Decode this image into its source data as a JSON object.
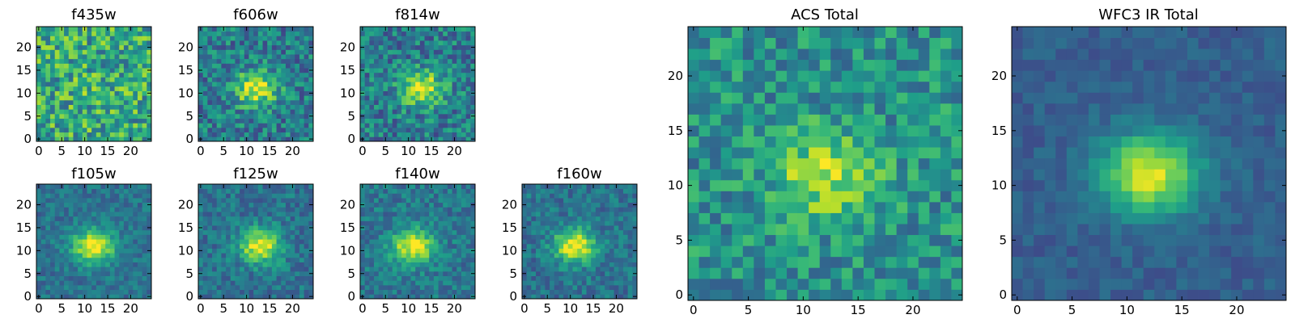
{
  "figure": {
    "colormap": "viridis"
  },
  "chart_data": [
    {
      "type": "heatmap",
      "id": "f435w",
      "title": "f435w",
      "grid_size": 25,
      "source_peak": [
        12,
        11
      ],
      "peak_strength": 0.05,
      "noise": 0.28,
      "base": 0.6,
      "seed": 11,
      "xticks": [
        0,
        5,
        10,
        15,
        20
      ],
      "yticks": [
        0,
        5,
        10,
        15,
        20
      ],
      "xlim": [
        0,
        24
      ],
      "ylim": [
        0,
        24
      ]
    },
    {
      "type": "heatmap",
      "id": "f606w",
      "title": "f606w",
      "grid_size": 25,
      "source_peak": [
        12,
        11
      ],
      "peak_strength": 0.55,
      "noise": 0.22,
      "base": 0.42,
      "seed": 23,
      "xticks": [
        0,
        5,
        10,
        15,
        20
      ],
      "yticks": [
        0,
        5,
        10,
        15,
        20
      ],
      "xlim": [
        0,
        24
      ],
      "ylim": [
        0,
        24
      ]
    },
    {
      "type": "heatmap",
      "id": "f814w",
      "title": "f814w",
      "grid_size": 25,
      "source_peak": [
        13,
        11
      ],
      "peak_strength": 0.55,
      "noise": 0.22,
      "base": 0.42,
      "seed": 37,
      "xticks": [
        0,
        5,
        10,
        15,
        20
      ],
      "yticks": [
        0,
        5,
        10,
        15,
        20
      ],
      "xlim": [
        0,
        24
      ],
      "ylim": [
        0,
        24
      ]
    },
    {
      "type": "heatmap",
      "id": "f105w",
      "title": "f105w",
      "grid_size": 25,
      "source_peak": [
        12,
        11
      ],
      "peak_strength": 0.62,
      "noise": 0.12,
      "base": 0.38,
      "seed": 41,
      "xticks": [
        0,
        5,
        10,
        15,
        20
      ],
      "yticks": [
        0,
        5,
        10,
        15,
        20
      ],
      "xlim": [
        0,
        24
      ],
      "ylim": [
        0,
        24
      ]
    },
    {
      "type": "heatmap",
      "id": "f125w",
      "title": "f125w",
      "grid_size": 25,
      "source_peak": [
        13,
        11
      ],
      "peak_strength": 0.6,
      "noise": 0.14,
      "base": 0.38,
      "seed": 53,
      "xticks": [
        0,
        5,
        10,
        15,
        20
      ],
      "yticks": [
        0,
        5,
        10,
        15,
        20
      ],
      "xlim": [
        0,
        24
      ],
      "ylim": [
        0,
        24
      ]
    },
    {
      "type": "heatmap",
      "id": "f140w",
      "title": "f140w",
      "grid_size": 25,
      "source_peak": [
        11,
        11
      ],
      "peak_strength": 0.6,
      "noise": 0.14,
      "base": 0.4,
      "seed": 67,
      "xticks": [
        0,
        5,
        10,
        15,
        20
      ],
      "yticks": [
        0,
        5,
        10,
        15,
        20
      ],
      "xlim": [
        0,
        24
      ],
      "ylim": [
        0,
        24
      ]
    },
    {
      "type": "heatmap",
      "id": "f160w",
      "title": "f160w",
      "grid_size": 25,
      "source_peak": [
        11,
        11
      ],
      "peak_strength": 0.62,
      "noise": 0.14,
      "base": 0.38,
      "seed": 79,
      "xticks": [
        0,
        5,
        10,
        15,
        20
      ],
      "yticks": [
        0,
        5,
        10,
        15,
        20
      ],
      "xlim": [
        0,
        24
      ],
      "ylim": [
        0,
        24
      ]
    },
    {
      "type": "heatmap",
      "id": "acs_total",
      "title": "ACS Total",
      "grid_size": 25,
      "source_peak": [
        12,
        11
      ],
      "peak_strength": 0.4,
      "noise": 0.2,
      "base": 0.5,
      "seed": 97,
      "xticks": [
        0,
        5,
        10,
        15,
        20
      ],
      "yticks": [
        0,
        5,
        10,
        15,
        20
      ],
      "xlim": [
        0,
        24
      ],
      "ylim": [
        0,
        24
      ]
    },
    {
      "type": "heatmap",
      "id": "wfc3_ir_total",
      "title": "WFC3 IR Total",
      "grid_size": 25,
      "source_peak": [
        12,
        11
      ],
      "peak_strength": 0.65,
      "noise": 0.07,
      "base": 0.3,
      "seed": 113,
      "xticks": [
        0,
        5,
        10,
        15,
        20
      ],
      "yticks": [
        0,
        5,
        10,
        15,
        20
      ],
      "xlim": [
        0,
        24
      ],
      "ylim": [
        0,
        24
      ]
    }
  ]
}
